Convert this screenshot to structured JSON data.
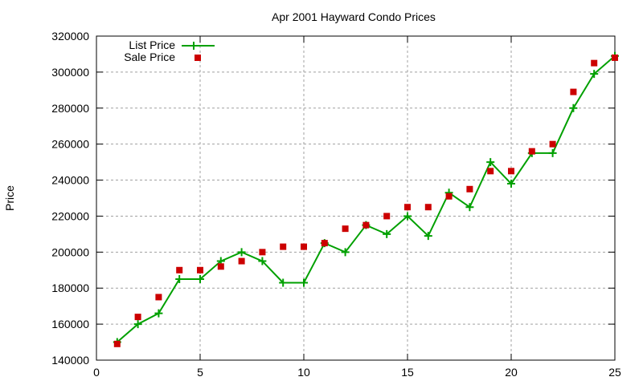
{
  "chart_data": {
    "type": "line",
    "title": "Apr 2001 Hayward Condo Prices",
    "xlabel": "",
    "ylabel": "Price",
    "xlim": [
      0,
      25
    ],
    "ylim": [
      140000,
      320000
    ],
    "x_ticks": [
      0,
      5,
      10,
      15,
      20,
      25
    ],
    "y_ticks": [
      140000,
      160000,
      180000,
      200000,
      220000,
      240000,
      260000,
      280000,
      300000,
      320000
    ],
    "grid": true,
    "legend_position": "top-left",
    "x": [
      1,
      2,
      3,
      4,
      5,
      6,
      7,
      8,
      9,
      10,
      11,
      12,
      13,
      14,
      15,
      16,
      17,
      18,
      19,
      20,
      21,
      22,
      23,
      24,
      25
    ],
    "series": [
      {
        "name": "List Price",
        "style": "linespoints",
        "marker": "plus",
        "color": "#00a000",
        "values": [
          150000,
          160000,
          166000,
          185000,
          185000,
          195000,
          200000,
          195000,
          183000,
          183000,
          205000,
          200000,
          215000,
          210000,
          220000,
          209000,
          233000,
          225000,
          250000,
          238000,
          255000,
          255000,
          280000,
          299000,
          309000
        ]
      },
      {
        "name": "Sale Price",
        "style": "points",
        "marker": "square",
        "color": "#cc0000",
        "values": [
          149000,
          164000,
          175000,
          190000,
          190000,
          192000,
          195000,
          200000,
          203000,
          203000,
          205000,
          213000,
          215000,
          220000,
          225000,
          225000,
          231000,
          235000,
          245000,
          245000,
          256000,
          260000,
          289000,
          305000,
          308000
        ]
      }
    ]
  }
}
